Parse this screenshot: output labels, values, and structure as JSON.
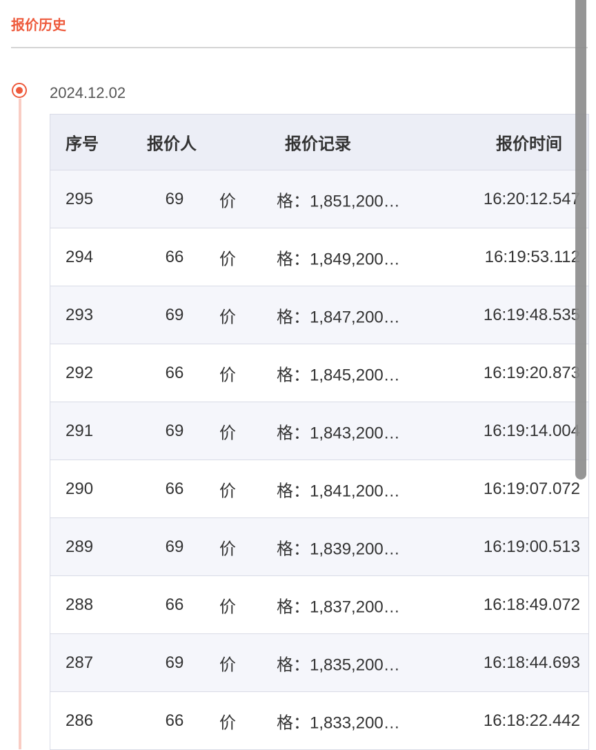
{
  "section_title": "报价历史",
  "timeline": {
    "date": "2024.12.02",
    "columns": [
      "序号",
      "报价人",
      "报价记录",
      "报价时间"
    ],
    "rows": [
      {
        "no": "295",
        "bidder": "69",
        "label_a": "价",
        "label_b": "格：",
        "price": "1,851,200…",
        "time": "16:20:12.547"
      },
      {
        "no": "294",
        "bidder": "66",
        "label_a": "价",
        "label_b": "格：",
        "price": "1,849,200…",
        "time": "16:19:53.112"
      },
      {
        "no": "293",
        "bidder": "69",
        "label_a": "价",
        "label_b": "格：",
        "price": "1,847,200…",
        "time": "16:19:48.535"
      },
      {
        "no": "292",
        "bidder": "66",
        "label_a": "价",
        "label_b": "格：",
        "price": "1,845,200…",
        "time": "16:19:20.873"
      },
      {
        "no": "291",
        "bidder": "69",
        "label_a": "价",
        "label_b": "格：",
        "price": "1,843,200…",
        "time": "16:19:14.004"
      },
      {
        "no": "290",
        "bidder": "66",
        "label_a": "价",
        "label_b": "格：",
        "price": "1,841,200…",
        "time": "16:19:07.072"
      },
      {
        "no": "289",
        "bidder": "69",
        "label_a": "价",
        "label_b": "格：",
        "price": "1,839,200…",
        "time": "16:19:00.513"
      },
      {
        "no": "288",
        "bidder": "66",
        "label_a": "价",
        "label_b": "格：",
        "price": "1,837,200…",
        "time": "16:18:49.072"
      },
      {
        "no": "287",
        "bidder": "69",
        "label_a": "价",
        "label_b": "格：",
        "price": "1,835,200…",
        "time": "16:18:44.693"
      },
      {
        "no": "286",
        "bidder": "66",
        "label_a": "价",
        "label_b": "格：",
        "price": "1,833,200…",
        "time": "16:18:22.442"
      }
    ]
  },
  "colors": {
    "accent": "#ee5a3c",
    "timeline_line": "#f9cdc4",
    "header_bg": "#eceef6",
    "stripe_bg": "#f5f6fb"
  }
}
